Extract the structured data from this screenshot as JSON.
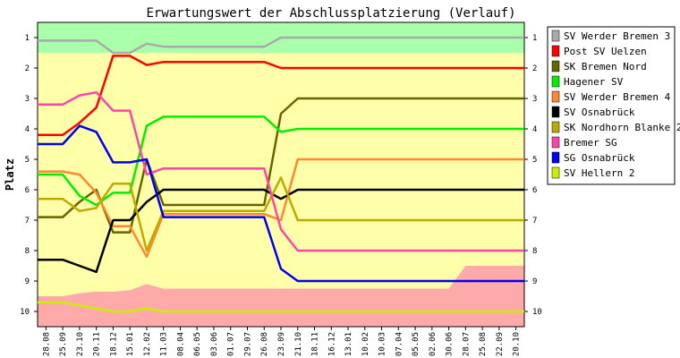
{
  "chart_data": {
    "type": "line",
    "title": "Erwartungswert der Abschlussplatzierung (Verlauf)",
    "ylabel": "Platz",
    "xlabel": "",
    "ylim": [
      10.5,
      0.5
    ],
    "y_ticks": [
      1,
      2,
      3,
      4,
      5,
      6,
      7,
      8,
      9,
      10
    ],
    "categories": [
      "28.08",
      "25.09",
      "23.10",
      "20.11",
      "18.12",
      "15.01",
      "12.02",
      "11.03",
      "08.04",
      "06.05",
      "03.06",
      "01.07",
      "29.07",
      "26.08",
      "23.09",
      "21.10",
      "18.11",
      "16.12",
      "13.01",
      "10.02",
      "10.03",
      "07.04",
      "05.05",
      "02.06",
      "30.06",
      "28.07",
      "25.08",
      "22.09",
      "20.10"
    ],
    "bands": [
      {
        "from": 0.5,
        "to": 1.5,
        "color": "#aaffaa"
      },
      {
        "from": 1.5,
        "to": 9.5,
        "color": "#ffffaa"
      },
      {
        "from": 9.5,
        "to": 10.5,
        "color": "#ffaaaa"
      }
    ],
    "series": [
      {
        "name": "SV Werder Bremen 3",
        "color": "#aaaaaa",
        "values": [
          1.1,
          1.1,
          1.1,
          1.1,
          1.5,
          1.5,
          1.2,
          1.3,
          1.3,
          1.3,
          1.3,
          1.3,
          1.3,
          1.3,
          1.0,
          1.0,
          1.0,
          1.0,
          1.0,
          1.0,
          1.0,
          1.0,
          1.0,
          1.0,
          1.0,
          1.0,
          1.0,
          1.0,
          1.0
        ]
      },
      {
        "name": "Post SV Uelzen",
        "color": "#ff0000",
        "values": [
          4.2,
          4.2,
          3.8,
          3.3,
          1.6,
          1.6,
          1.9,
          1.8,
          1.8,
          1.8,
          1.8,
          1.8,
          1.8,
          1.8,
          2.0,
          2.0,
          2.0,
          2.0,
          2.0,
          2.0,
          2.0,
          2.0,
          2.0,
          2.0,
          2.0,
          2.0,
          2.0,
          2.0,
          2.0
        ]
      },
      {
        "name": "SK Bremen Nord",
        "color": "#666600",
        "values": [
          6.9,
          6.9,
          6.4,
          6.0,
          7.4,
          7.4,
          5.0,
          6.5,
          6.5,
          6.5,
          6.5,
          6.5,
          6.5,
          6.5,
          3.5,
          3.0,
          3.0,
          3.0,
          3.0,
          3.0,
          3.0,
          3.0,
          3.0,
          3.0,
          3.0,
          3.0,
          3.0,
          3.0,
          3.0
        ]
      },
      {
        "name": "Hagener SV",
        "color": "#00ee00",
        "values": [
          5.5,
          5.5,
          6.2,
          6.5,
          6.1,
          6.1,
          3.9,
          3.6,
          3.6,
          3.6,
          3.6,
          3.6,
          3.6,
          3.6,
          4.1,
          4.0,
          4.0,
          4.0,
          4.0,
          4.0,
          4.0,
          4.0,
          4.0,
          4.0,
          4.0,
          4.0,
          4.0,
          4.0,
          4.0
        ]
      },
      {
        "name": "SV Werder Bremen 4",
        "color": "#ff8833",
        "values": [
          5.4,
          5.4,
          5.5,
          6.1,
          7.2,
          7.2,
          8.2,
          6.8,
          6.8,
          6.8,
          6.8,
          6.8,
          6.8,
          6.8,
          7.0,
          5.0,
          5.0,
          5.0,
          5.0,
          5.0,
          5.0,
          5.0,
          5.0,
          5.0,
          5.0,
          5.0,
          5.0,
          5.0,
          5.0
        ]
      },
      {
        "name": "SV Osnabrück",
        "color": "#000000",
        "values": [
          8.3,
          8.3,
          8.5,
          8.7,
          7.0,
          7.0,
          6.4,
          6.0,
          6.0,
          6.0,
          6.0,
          6.0,
          6.0,
          6.0,
          6.3,
          6.0,
          6.0,
          6.0,
          6.0,
          6.0,
          6.0,
          6.0,
          6.0,
          6.0,
          6.0,
          6.0,
          6.0,
          6.0,
          6.0
        ]
      },
      {
        "name": "SK Nordhorn Blanke 2",
        "color": "#bbaa00",
        "values": [
          6.3,
          6.3,
          6.7,
          6.6,
          5.8,
          5.8,
          8.0,
          6.7,
          6.7,
          6.7,
          6.7,
          6.7,
          6.7,
          6.7,
          5.6,
          7.0,
          7.0,
          7.0,
          7.0,
          7.0,
          7.0,
          7.0,
          7.0,
          7.0,
          7.0,
          7.0,
          7.0,
          7.0,
          7.0
        ]
      },
      {
        "name": "Bremer SG",
        "color": "#ff44aa",
        "values": [
          3.2,
          3.2,
          2.9,
          2.8,
          3.4,
          3.4,
          5.5,
          5.3,
          5.3,
          5.3,
          5.3,
          5.3,
          5.3,
          5.3,
          7.3,
          8.0,
          8.0,
          8.0,
          8.0,
          8.0,
          8.0,
          8.0,
          8.0,
          8.0,
          8.0,
          8.0,
          8.0,
          8.0,
          8.0
        ]
      },
      {
        "name": "SG Osnabrück",
        "color": "#0000ee",
        "values": [
          4.5,
          4.5,
          3.9,
          4.1,
          5.1,
          5.1,
          5.0,
          6.9,
          6.9,
          6.9,
          6.9,
          6.9,
          6.9,
          6.9,
          8.6,
          9.0,
          9.0,
          9.0,
          9.0,
          9.0,
          9.0,
          9.0,
          9.0,
          9.0,
          9.0,
          9.0,
          9.0,
          9.0,
          9.0
        ]
      },
      {
        "name": "SV Hellern 2",
        "color": "#ccee00",
        "values": [
          9.7,
          9.7,
          9.8,
          9.9,
          10.0,
          10.0,
          9.9,
          10.0,
          10.0,
          10.0,
          10.0,
          10.0,
          10.0,
          10.0,
          10.0,
          10.0,
          10.0,
          10.0,
          10.0,
          10.0,
          10.0,
          10.0,
          10.0,
          10.0,
          10.0,
          10.0,
          10.0,
          10.0,
          10.0
        ]
      }
    ],
    "red_area": {
      "color": "#ffaaaa",
      "values": [
        9.5,
        9.5,
        9.4,
        9.35,
        9.35,
        9.3,
        9.1,
        9.25,
        9.25,
        9.25,
        9.25,
        9.25,
        9.25,
        9.25,
        9.25,
        9.25,
        9.25,
        9.25,
        9.25,
        9.25,
        9.25,
        9.25,
        9.25,
        9.25,
        9.25,
        8.5,
        8.5,
        8.5,
        8.5
      ]
    },
    "legend": {
      "position": "right"
    }
  }
}
